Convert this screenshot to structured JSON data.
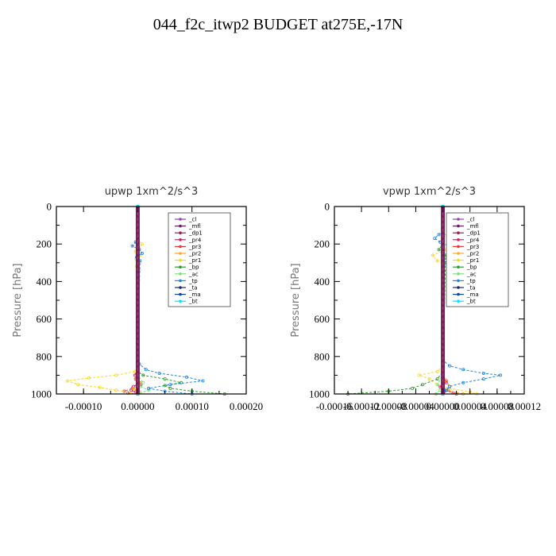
{
  "figure_title": "044_f2c_itwp2  BUDGET at275E,-17N",
  "chart_data": [
    {
      "type": "line",
      "title": "upwp   1xm^2/s^3",
      "ylabel": "Pressure  [hPa]",
      "xlabel": "",
      "xlim": [
        -0.00015,
        0.0002
      ],
      "ylim": [
        1000,
        0
      ],
      "xticks": [
        "-0.00010",
        "0.00000",
        "0.00010",
        "0.00020"
      ],
      "xtick_values": [
        -0.0001,
        0,
        0.0001,
        0.0002
      ],
      "yticks": [
        "0",
        "200",
        "400",
        "600",
        "800",
        "1000"
      ],
      "ytick_values": [
        0,
        200,
        400,
        600,
        800,
        1000
      ],
      "legend_position": "top-right",
      "grid": false,
      "series": [
        {
          "name": "_cl",
          "color": "#8e44ad",
          "y": [
            0,
            1000
          ],
          "x": [
            0,
            0
          ]
        },
        {
          "name": "_mfl",
          "color": "#6a1b6a",
          "y": [
            0,
            1000
          ],
          "x": [
            0,
            0
          ]
        },
        {
          "name": "_dp1",
          "color": "#9b1c5a",
          "y": [
            0,
            1000
          ],
          "x": [
            0,
            0
          ]
        },
        {
          "name": "_pr4",
          "color": "#d81b60",
          "y": [
            0,
            850,
            900,
            940,
            960,
            980,
            990,
            1000
          ],
          "x": [
            0,
            0,
            -5e-06,
            4e-06,
            -8e-06,
            -1.2e-05,
            -4e-06,
            0
          ]
        },
        {
          "name": "_pr3",
          "color": "#e53935",
          "y": [
            0,
            880,
            920,
            950,
            970,
            985,
            995,
            1000
          ],
          "x": [
            0,
            0,
            -4e-06,
            6e-06,
            -1e-05,
            -2.5e-05,
            -1.8e-05,
            0
          ]
        },
        {
          "name": "_pr2",
          "color": "#ffa726",
          "y": [
            0,
            900,
            940,
            970,
            990,
            1000
          ],
          "x": [
            0,
            0,
            4e-06,
            -8e-06,
            4e-06,
            0
          ]
        },
        {
          "name": "_pr1",
          "color": "#f9d71c",
          "y": [
            0,
            180,
            200,
            220,
            240,
            260,
            280,
            300,
            320,
            340,
            360,
            850,
            880,
            900,
            915,
            930,
            950,
            965,
            980,
            1000
          ],
          "x": [
            0,
            0,
            8e-06,
            2e-06,
            -4e-06,
            5e-06,
            -3e-06,
            4e-06,
            -2e-06,
            3e-06,
            0,
            0,
            -5e-06,
            -4e-05,
            -9e-05,
            -0.00013,
            -0.00011,
            -7e-05,
            -4e-05,
            0
          ]
        },
        {
          "name": "_bp",
          "color": "#2e9e2e",
          "y": [
            0,
            880,
            900,
            920,
            940,
            955,
            970,
            985,
            1000
          ],
          "x": [
            0,
            0,
            1e-05,
            5e-05,
            8e-05,
            5e-05,
            6e-05,
            0.0001,
            0.00016
          ]
        },
        {
          "name": "_ac",
          "color": "#7ee07e",
          "y": [
            0,
            900,
            940,
            960,
            980,
            1000
          ],
          "x": [
            0,
            0,
            1e-05,
            5e-06,
            2e-05,
            0
          ]
        },
        {
          "name": "_tp",
          "color": "#1e88e5",
          "y": [
            0,
            170,
            190,
            210,
            230,
            250,
            270,
            290,
            800,
            840,
            870,
            890,
            910,
            930,
            950,
            970,
            985,
            1000
          ],
          "x": [
            0,
            0,
            -4e-06,
            -1e-05,
            3e-06,
            8e-06,
            -2e-06,
            4e-06,
            0,
            3e-06,
            1.5e-05,
            4e-05,
            9e-05,
            0.00012,
            6e-05,
            2e-05,
            5e-05,
            0.0001
          ]
        },
        {
          "name": "_ta",
          "color": "#1a237e",
          "y": [
            0,
            1000
          ],
          "x": [
            0,
            0
          ]
        },
        {
          "name": "_ma",
          "color": "#0d47a1",
          "y": [
            0,
            1000
          ],
          "x": [
            0,
            0
          ]
        },
        {
          "name": "_bt",
          "color": "#00e5ff",
          "y": [
            0,
            1000
          ],
          "x": [
            0,
            0
          ]
        }
      ]
    },
    {
      "type": "line",
      "title": "vpwp   1xm^2/s^3",
      "ylabel": "Pressure  [hPa]",
      "xlabel": "",
      "xlim": [
        -0.00016,
        0.00012
      ],
      "ylim": [
        1000,
        0
      ],
      "xticks": [
        "-0.00016",
        "-0.00012",
        "-0.00008",
        "-0.00004",
        "0.00000",
        "0.00004",
        "0.00008",
        "0.00012"
      ],
      "xtick_values": [
        -0.00016,
        -0.00012,
        -8e-05,
        -4e-05,
        0,
        4e-05,
        8e-05,
        0.00012
      ],
      "yticks": [
        "0",
        "200",
        "400",
        "600",
        "800",
        "1000"
      ],
      "ytick_values": [
        0,
        200,
        400,
        600,
        800,
        1000
      ],
      "legend_position": "top-right",
      "grid": false,
      "series": [
        {
          "name": "_cl",
          "color": "#8e44ad",
          "y": [
            0,
            1000
          ],
          "x": [
            0,
            0
          ]
        },
        {
          "name": "_mfl",
          "color": "#6a1b6a",
          "y": [
            0,
            1000
          ],
          "x": [
            0,
            0
          ]
        },
        {
          "name": "_dp1",
          "color": "#9b1c5a",
          "y": [
            0,
            1000
          ],
          "x": [
            0,
            0
          ]
        },
        {
          "name": "_pr4",
          "color": "#d81b60",
          "y": [
            0,
            900,
            940,
            960,
            980,
            1000
          ],
          "x": [
            0,
            0,
            5e-06,
            -4e-06,
            8e-06,
            0
          ]
        },
        {
          "name": "_pr3",
          "color": "#e53935",
          "y": [
            0,
            900,
            930,
            960,
            980,
            995,
            1000
          ],
          "x": [
            0,
            0,
            5e-06,
            1e-05,
            4e-06,
            1.5e-05,
            2e-05
          ]
        },
        {
          "name": "_pr2",
          "color": "#ffa726",
          "y": [
            0,
            920,
            960,
            980,
            1000
          ],
          "x": [
            0,
            0,
            1e-05,
            5e-06,
            3e-05
          ]
        },
        {
          "name": "_pr1",
          "color": "#f9d71c",
          "y": [
            0,
            140,
            170,
            200,
            230,
            260,
            290,
            320,
            350,
            850,
            880,
            900,
            920,
            950,
            970,
            990,
            1000
          ],
          "x": [
            0,
            0,
            1e-05,
            1.5e-05,
            5e-06,
            -1.5e-05,
            -8e-06,
            1.2e-05,
            0,
            0,
            -8e-06,
            -3.5e-05,
            -2e-05,
            -8e-06,
            1e-05,
            4e-05,
            5e-05
          ]
        },
        {
          "name": "_bp",
          "color": "#2e9e2e",
          "y": [
            0,
            200,
            230,
            260,
            880,
            920,
            950,
            970,
            985,
            1000
          ],
          "x": [
            0,
            0,
            -6e-06,
            4e-06,
            0,
            -8e-06,
            -3e-05,
            -4.5e-05,
            -8e-05,
            -0.00014
          ]
        },
        {
          "name": "_ac",
          "color": "#7ee07e",
          "y": [
            0,
            900,
            950,
            980,
            1000
          ],
          "x": [
            0,
            0,
            -8e-06,
            -4e-06,
            -1e-05
          ]
        },
        {
          "name": "_tp",
          "color": "#1e88e5",
          "y": [
            0,
            130,
            150,
            170,
            190,
            210,
            240,
            270,
            300,
            330,
            820,
            850,
            870,
            890,
            900,
            920,
            940,
            960,
            980,
            1000
          ],
          "x": [
            0,
            0,
            -6e-06,
            -1.2e-05,
            -4e-06,
            8e-06,
            2.5e-05,
            1.2e-05,
            4e-06,
            0,
            0,
            1e-05,
            3e-05,
            6e-05,
            8.5e-05,
            6e-05,
            3e-05,
            1e-05,
            5e-06,
            0
          ]
        },
        {
          "name": "_ta",
          "color": "#1a237e",
          "y": [
            0,
            1000
          ],
          "x": [
            0,
            0
          ]
        },
        {
          "name": "_ma",
          "color": "#0d47a1",
          "y": [
            0,
            1000
          ],
          "x": [
            0,
            0
          ]
        },
        {
          "name": "_bt",
          "color": "#00e5ff",
          "y": [
            0,
            1000
          ],
          "x": [
            0,
            0
          ]
        }
      ]
    }
  ]
}
